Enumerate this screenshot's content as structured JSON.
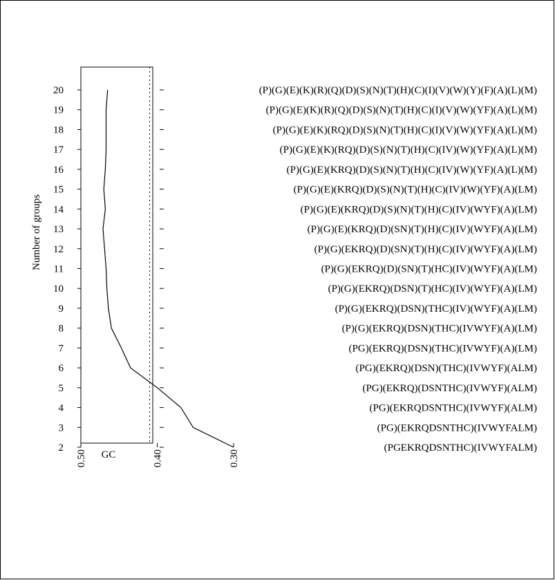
{
  "chart_data": {
    "type": "line",
    "ylabel": "Number of groups",
    "xlabel": "GC",
    "x_axis_reversed": true,
    "xlim": [
      0.3,
      0.5
    ],
    "ylim": [
      2,
      20
    ],
    "x_ticks": [
      "0.50",
      "0.40",
      "0.30"
    ],
    "y_ticks": [
      "2",
      "3",
      "4",
      "5",
      "6",
      "7",
      "8",
      "9",
      "10",
      "11",
      "12",
      "13",
      "14",
      "15",
      "16",
      "17",
      "18",
      "19",
      "20"
    ],
    "reference_line": {
      "x": 0.41,
      "style": "dotted"
    },
    "series": [
      {
        "points": [
          {
            "groups": 20,
            "gc": 0.465
          },
          {
            "groups": 19,
            "gc": 0.467
          },
          {
            "groups": 18,
            "gc": 0.467
          },
          {
            "groups": 17,
            "gc": 0.467
          },
          {
            "groups": 16,
            "gc": 0.468
          },
          {
            "groups": 15,
            "gc": 0.47
          },
          {
            "groups": 14,
            "gc": 0.468
          },
          {
            "groups": 13,
            "gc": 0.471
          },
          {
            "groups": 12,
            "gc": 0.469
          },
          {
            "groups": 11,
            "gc": 0.467
          },
          {
            "groups": 10,
            "gc": 0.466
          },
          {
            "groups": 9,
            "gc": 0.464
          },
          {
            "groups": 8,
            "gc": 0.46
          },
          {
            "groups": 7,
            "gc": 0.447
          },
          {
            "groups": 6,
            "gc": 0.435
          },
          {
            "groups": 5,
            "gc": 0.4
          },
          {
            "groups": 4,
            "gc": 0.369
          },
          {
            "groups": 3,
            "gc": 0.353
          },
          {
            "groups": 2,
            "gc": 0.3
          }
        ]
      }
    ],
    "group_labels": [
      {
        "groups": 20,
        "text": "(P)(G)(E)(K)(R)(Q)(D)(S)(N)(T)(H)(C)(I)(V)(W)(Y)(F)(A)(L)(M)"
      },
      {
        "groups": 19,
        "text": "(P)(G)(E)(K)(R)(Q)(D)(S)(N)(T)(H)(C)(I)(V)(W)(YF)(A)(L)(M)"
      },
      {
        "groups": 18,
        "text": "(P)(G)(E)(K)(RQ)(D)(S)(N)(T)(H)(C)(I)(V)(W)(YF)(A)(L)(M)"
      },
      {
        "groups": 17,
        "text": "(P)(G)(E)(K)(RQ)(D)(S)(N)(T)(H)(C)(IV)(W)(YF)(A)(L)(M)"
      },
      {
        "groups": 16,
        "text": "(P)(G)(E)(KRQ)(D)(S)(N)(T)(H)(C)(IV)(W)(YF)(A)(L)(M)"
      },
      {
        "groups": 15,
        "text": "(P)(G)(E)(KRQ)(D)(S)(N)(T)(H)(C)(IV)(W)(YF)(A)(LM)"
      },
      {
        "groups": 14,
        "text": "(P)(G)(E)(KRQ)(D)(S)(N)(T)(H)(C)(IV)(WYF)(A)(LM)"
      },
      {
        "groups": 13,
        "text": "(P)(G)(E)(KRQ)(D)(SN)(T)(H)(C)(IV)(WYF)(A)(LM)"
      },
      {
        "groups": 12,
        "text": "(P)(G)(EKRQ)(D)(SN)(T)(H)(C)(IV)(WYF)(A)(LM)"
      },
      {
        "groups": 11,
        "text": "(P)(G)(EKRQ)(D)(SN)(T)(HC)(IV)(WYF)(A)(LM)"
      },
      {
        "groups": 10,
        "text": "(P)(G)(EKRQ)(DSN)(T)(HC)(IV)(WYF)(A)(LM)"
      },
      {
        "groups": 9,
        "text": "(P)(G)(EKRQ)(DSN)(THC)(IV)(WYF)(A)(LM)"
      },
      {
        "groups": 8,
        "text": "(P)(G)(EKRQ)(DSN)(THC)(IVWYF)(A)(LM)"
      },
      {
        "groups": 7,
        "text": "(PG)(EKRQ)(DSN)(THC)(IVWYF)(A)(LM)"
      },
      {
        "groups": 6,
        "text": "(PG)(EKRQ)(DSN)(THC)(IVWYF)(ALM)"
      },
      {
        "groups": 5,
        "text": "(PG)(EKRQ)(DSNTHC)(IVWYF)(ALM)"
      },
      {
        "groups": 4,
        "text": "(PG)(EKRQDSNTHC)(IVWYF)(ALM)"
      },
      {
        "groups": 3,
        "text": "(PG)(EKRQDSNTHC)(IVWYFALM)"
      },
      {
        "groups": 2,
        "text": "(PGEKRQDSNTHC)(IVWYFALM)"
      }
    ]
  }
}
